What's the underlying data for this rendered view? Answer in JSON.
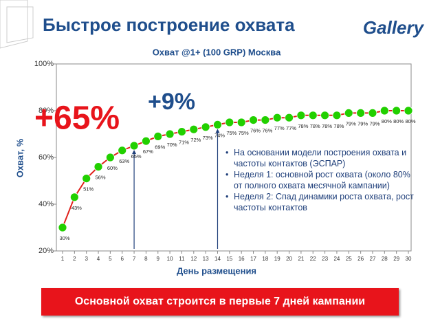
{
  "header": {
    "title": "Быстрое построение охвата",
    "logo": "Gallery"
  },
  "chart_data": {
    "type": "line",
    "title": "Охват @1+ (100 GRP) Москва",
    "x_label": "День размещения",
    "y_label": "Охват, %",
    "x": [
      1,
      2,
      3,
      4,
      5,
      6,
      7,
      8,
      9,
      10,
      11,
      12,
      13,
      14,
      15,
      16,
      17,
      18,
      19,
      20,
      21,
      22,
      23,
      24,
      25,
      26,
      27,
      28,
      29,
      30
    ],
    "values": [
      30,
      43,
      51,
      56,
      60,
      63,
      65,
      67,
      69,
      70,
      71,
      72,
      73,
      74,
      75,
      75,
      76,
      76,
      77,
      77,
      78,
      78,
      78,
      78,
      79,
      79,
      79,
      80,
      80,
      80
    ],
    "value_labels": [
      "30%",
      "43%",
      "51%",
      "56%",
      "60%",
      "63%",
      "65%",
      "67%",
      "69%",
      "70%",
      "71%",
      "72%",
      "73%",
      "74%",
      "75%",
      "75%",
      "76%",
      "76%",
      "77%",
      "77%",
      "78%",
      "78%",
      "78%",
      "78%",
      "79%",
      "79%",
      "79%",
      "80%",
      "80%",
      "80%"
    ],
    "line_color": "#e0201a",
    "marker_color": "#22d000",
    "xlim": [
      1,
      30
    ],
    "xticks": [
      1,
      2,
      3,
      4,
      5,
      6,
      7,
      8,
      9,
      10,
      11,
      12,
      13,
      14,
      15,
      16,
      17,
      18,
      19,
      20,
      21,
      22,
      23,
      24,
      25,
      26,
      27,
      28,
      29,
      30
    ],
    "ylim": [
      20,
      100
    ],
    "yticks": [
      {
        "value": 20,
        "label": "20%"
      },
      {
        "value": 40,
        "label": "40%"
      },
      {
        "value": 60,
        "label": "60%"
      },
      {
        "value": 80,
        "label": "80%"
      },
      {
        "value": 100,
        "label": "100%"
      }
    ],
    "grid": false,
    "vlines": [
      7,
      14
    ],
    "annotations": [
      "+65%",
      "+9%"
    ]
  },
  "bullets": [
    "На основании модели построения охвата и частоты контактов (ЭСПАР)",
    "Неделя 1: основной рост охвата (около 80% от полного охвата месячной кампании)",
    "Неделя 2: Спад динамики роста охвата, рост частоты контактов"
  ],
  "footer": "Основной охват строится в первые 7 дней кампании"
}
